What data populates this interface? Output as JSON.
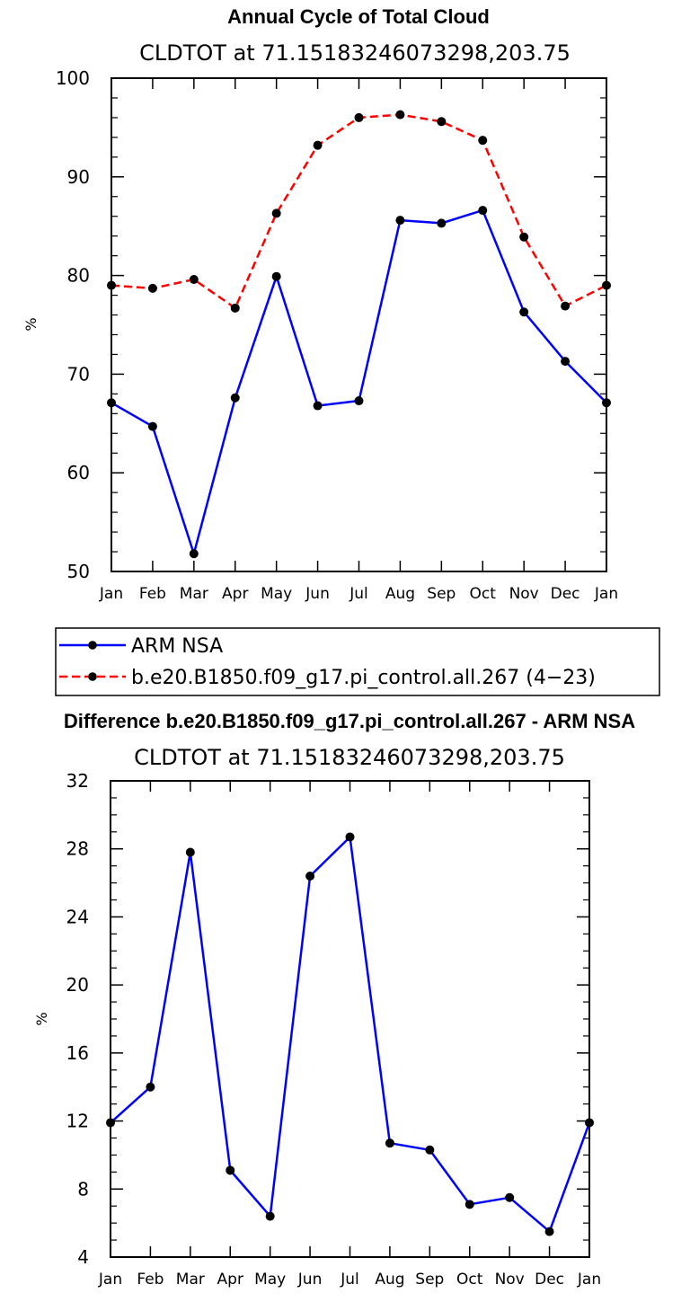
{
  "chart_data": [
    {
      "type": "line",
      "title": "Annual Cycle of Total Cloud",
      "subtitle": "CLDTOT at 71.15183246073298,203.75",
      "xlabel": "",
      "ylabel": "%",
      "categories": [
        "Jan",
        "Feb",
        "Mar",
        "Apr",
        "May",
        "Jun",
        "Jul",
        "Aug",
        "Sep",
        "Oct",
        "Nov",
        "Dec",
        "Jan"
      ],
      "ylim": [
        50,
        100
      ],
      "yticks": [
        50,
        60,
        70,
        80,
        90,
        100
      ],
      "grid": false,
      "legend_position": "bottom-left",
      "series": [
        {
          "name": "ARM NSA",
          "color": "#0000ff",
          "dash": "solid",
          "values": [
            67.1,
            64.7,
            51.8,
            67.6,
            79.9,
            66.8,
            67.3,
            85.6,
            85.3,
            86.6,
            76.3,
            71.3,
            67.1
          ]
        },
        {
          "name": "b.e20.B1850.f09_g17.pi_control.all.267 (4−23)",
          "color": "#ff0000",
          "dash": "dashed",
          "values": [
            79.0,
            78.7,
            79.6,
            76.7,
            86.3,
            93.2,
            96.0,
            96.3,
            95.6,
            93.7,
            83.9,
            76.9,
            79.0
          ]
        }
      ]
    },
    {
      "type": "line",
      "title": "Difference b.e20.B1850.f09_g17.pi_control.all.267 - ARM NSA",
      "subtitle": "CLDTOT at 71.15183246073298,203.75",
      "xlabel": "",
      "ylabel": "%",
      "categories": [
        "Jan",
        "Feb",
        "Mar",
        "Apr",
        "May",
        "Jun",
        "Jul",
        "Aug",
        "Sep",
        "Oct",
        "Nov",
        "Dec",
        "Jan"
      ],
      "ylim": [
        4,
        32
      ],
      "yticks": [
        4,
        8,
        12,
        16,
        20,
        24,
        28,
        32
      ],
      "grid": false,
      "series": [
        {
          "color": "#0000ff",
          "dash": "solid",
          "values": [
            11.9,
            14.0,
            27.8,
            9.1,
            6.4,
            26.4,
            28.7,
            10.7,
            10.3,
            7.1,
            7.5,
            5.5,
            11.9
          ]
        }
      ]
    }
  ]
}
